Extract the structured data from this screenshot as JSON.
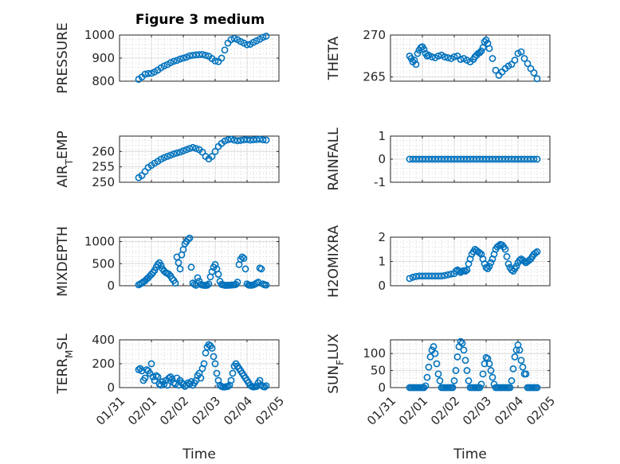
{
  "figure": {
    "title": "Figure 3 medium"
  },
  "chart_data": [
    {
      "type": "scatter",
      "id": "pressure",
      "title": "Figure 3 medium",
      "ylabel": "PRESSURE",
      "xlabel": "",
      "ylim": [
        800,
        1000
      ],
      "yticks": [
        800,
        900,
        1000
      ],
      "yticklabels": [
        "800",
        "900",
        "1000"
      ],
      "xlim": [
        0,
        5
      ],
      "xticks": [
        0,
        1,
        2,
        3,
        4,
        5
      ],
      "xticklabels": [],
      "x": [
        0.6,
        0.7,
        0.8,
        0.9,
        1.0,
        1.1,
        1.2,
        1.3,
        1.4,
        1.5,
        1.6,
        1.7,
        1.8,
        1.9,
        2.0,
        2.1,
        2.2,
        2.3,
        2.4,
        2.5,
        2.6,
        2.7,
        2.8,
        2.9,
        3.0,
        3.1,
        3.2,
        3.3,
        3.4,
        3.5,
        3.6,
        3.7,
        3.8,
        3.9,
        4.0,
        4.1,
        4.2,
        4.3,
        4.4,
        4.5,
        4.6
      ],
      "values": [
        808,
        818,
        830,
        833,
        834,
        840,
        848,
        858,
        866,
        872,
        880,
        886,
        890,
        896,
        900,
        904,
        910,
        912,
        914,
        915,
        916,
        912,
        908,
        898,
        888,
        885,
        900,
        935,
        965,
        980,
        985,
        980,
        972,
        965,
        958,
        960,
        968,
        975,
        982,
        990,
        995
      ]
    },
    {
      "type": "scatter",
      "id": "theta",
      "ylabel": "THETA",
      "xlabel": "",
      "ylim": [
        264.5,
        270
      ],
      "yticks": [
        265,
        270
      ],
      "yticklabels": [
        "265",
        "270"
      ],
      "xlim": [
        0,
        5
      ],
      "xticks": [
        0,
        1,
        2,
        3,
        4,
        5
      ],
      "xticklabels": [],
      "x": [
        0.6,
        0.65,
        0.7,
        0.75,
        0.8,
        0.85,
        0.9,
        0.95,
        1.0,
        1.05,
        1.1,
        1.15,
        1.2,
        1.3,
        1.4,
        1.5,
        1.6,
        1.7,
        1.8,
        1.9,
        2.0,
        2.1,
        2.2,
        2.3,
        2.4,
        2.5,
        2.6,
        2.65,
        2.7,
        2.75,
        2.8,
        2.85,
        2.9,
        2.95,
        3.0,
        3.05,
        3.1,
        3.2,
        3.3,
        3.4,
        3.5,
        3.6,
        3.7,
        3.8,
        3.9,
        4.0,
        4.1,
        4.2,
        4.3,
        4.4,
        4.5,
        4.6
      ],
      "values": [
        267.5,
        267.2,
        266.8,
        267.0,
        266.5,
        267.8,
        268.2,
        268.5,
        268.6,
        268.3,
        267.8,
        267.5,
        267.6,
        267.4,
        267.3,
        267.5,
        267.6,
        267.4,
        267.3,
        267.2,
        267.4,
        267.5,
        267.1,
        267.2,
        267.0,
        266.8,
        267.1,
        267.4,
        267.6,
        267.8,
        267.9,
        268.1,
        268.5,
        269.2,
        269.4,
        269.0,
        268.4,
        267.2,
        265.8,
        265.2,
        265.6,
        266.0,
        266.3,
        266.5,
        267.0,
        267.8,
        268.0,
        267.2,
        266.6,
        266.0,
        265.5,
        264.8
      ]
    },
    {
      "type": "scatter",
      "id": "air-temp",
      "ylabel": "AIR_TEMP",
      "xlabel": "",
      "ylim": [
        250,
        265
      ],
      "yticks": [
        250,
        255,
        260
      ],
      "yticklabels": [
        "250",
        "255",
        "260"
      ],
      "xlim": [
        0,
        5
      ],
      "xticks": [
        0,
        1,
        2,
        3,
        4,
        5
      ],
      "xticklabels": [],
      "x": [
        0.6,
        0.7,
        0.8,
        0.9,
        1.0,
        1.1,
        1.2,
        1.3,
        1.4,
        1.5,
        1.6,
        1.7,
        1.8,
        1.9,
        2.0,
        2.1,
        2.2,
        2.3,
        2.4,
        2.5,
        2.6,
        2.7,
        2.8,
        2.9,
        3.0,
        3.1,
        3.2,
        3.3,
        3.4,
        3.5,
        3.6,
        3.7,
        3.8,
        3.9,
        4.0,
        4.1,
        4.2,
        4.3,
        4.4,
        4.5,
        4.6
      ],
      "values": [
        251.5,
        252.2,
        253.5,
        254.8,
        255.5,
        256.2,
        256.8,
        257.5,
        258.0,
        258.4,
        258.8,
        259.2,
        259.5,
        259.8,
        260.2,
        260.6,
        261.0,
        261.3,
        261.0,
        260.6,
        259.8,
        258.4,
        257.6,
        258.4,
        260.0,
        261.6,
        262.6,
        263.4,
        263.8,
        264.0,
        263.7,
        263.5,
        263.6,
        263.8,
        263.9,
        263.7,
        263.8,
        263.9,
        264.0,
        263.8,
        263.7
      ]
    },
    {
      "type": "scatter",
      "id": "rainfall",
      "ylabel": "RAINFALL",
      "xlabel": "",
      "ylim": [
        -1,
        1
      ],
      "yticks": [
        -1,
        0,
        1
      ],
      "yticklabels": [
        "-1",
        "0",
        "1"
      ],
      "xlim": [
        0,
        5
      ],
      "xticks": [
        0,
        1,
        2,
        3,
        4,
        5
      ],
      "xticklabels": [],
      "x": [
        0.6,
        0.7,
        0.8,
        0.9,
        1.0,
        1.1,
        1.2,
        1.3,
        1.4,
        1.5,
        1.6,
        1.7,
        1.8,
        1.9,
        2.0,
        2.1,
        2.2,
        2.3,
        2.4,
        2.5,
        2.6,
        2.7,
        2.8,
        2.9,
        3.0,
        3.1,
        3.2,
        3.3,
        3.4,
        3.5,
        3.6,
        3.7,
        3.8,
        3.9,
        4.0,
        4.1,
        4.2,
        4.3,
        4.4,
        4.5,
        4.6
      ],
      "values": [
        0,
        0,
        0,
        0,
        0,
        0,
        0,
        0,
        0,
        0,
        0,
        0,
        0,
        0,
        0,
        0,
        0,
        0,
        0,
        0,
        0,
        0,
        0,
        0,
        0,
        0,
        0,
        0,
        0,
        0,
        0,
        0,
        0,
        0,
        0,
        0,
        0,
        0,
        0,
        0,
        0
      ]
    },
    {
      "type": "scatter",
      "id": "mixdepth",
      "ylabel": "MIXDEPTH",
      "xlabel": "",
      "ylim": [
        0,
        1100
      ],
      "yticks": [
        0,
        500,
        1000
      ],
      "yticklabels": [
        "0",
        "500",
        "1000"
      ],
      "xlim": [
        0,
        5
      ],
      "xticks": [
        0,
        1,
        2,
        3,
        4,
        5
      ],
      "xticklabels": [],
      "x": [
        0.6,
        0.65,
        0.7,
        0.75,
        0.8,
        0.85,
        0.9,
        0.95,
        1.0,
        1.05,
        1.1,
        1.15,
        1.2,
        1.25,
        1.3,
        1.35,
        1.4,
        1.45,
        1.5,
        1.55,
        1.6,
        1.65,
        1.7,
        1.75,
        1.8,
        1.85,
        1.9,
        1.95,
        2.0,
        2.05,
        2.1,
        2.15,
        2.2,
        2.25,
        2.3,
        2.35,
        2.4,
        2.45,
        2.5,
        2.55,
        2.6,
        2.65,
        2.7,
        2.75,
        2.8,
        2.85,
        2.9,
        2.95,
        3.0,
        3.05,
        3.1,
        3.15,
        3.2,
        3.25,
        3.3,
        3.35,
        3.4,
        3.45,
        3.5,
        3.55,
        3.6,
        3.65,
        3.7,
        3.75,
        3.8,
        3.85,
        3.9,
        3.95,
        4.0,
        4.05,
        4.1,
        4.15,
        4.2,
        4.25,
        4.3,
        4.35,
        4.4,
        4.45,
        4.5,
        4.55,
        4.6
      ],
      "values": [
        20,
        40,
        60,
        90,
        110,
        150,
        180,
        220,
        260,
        300,
        350,
        420,
        480,
        520,
        460,
        380,
        330,
        300,
        280,
        260,
        220,
        160,
        120,
        60,
        650,
        520,
        380,
        700,
        820,
        950,
        1000,
        1050,
        1080,
        420,
        60,
        30,
        10,
        180,
        100,
        30,
        15,
        10,
        8,
        12,
        40,
        200,
        320,
        420,
        480,
        380,
        260,
        100,
        30,
        20,
        10,
        8,
        10,
        12,
        15,
        18,
        20,
        30,
        80,
        480,
        600,
        650,
        620,
        380,
        40,
        15,
        10,
        12,
        20,
        35,
        60,
        80,
        400,
        380,
        40,
        20,
        15
      ]
    },
    {
      "type": "scatter",
      "id": "h2omixra",
      "ylabel": "H2OMIXRA",
      "xlabel": "",
      "ylim": [
        0,
        2
      ],
      "yticks": [
        0,
        1,
        2
      ],
      "yticklabels": [
        "0",
        "1",
        "2"
      ],
      "xlim": [
        0,
        5
      ],
      "xticks": [
        0,
        1,
        2,
        3,
        4,
        5
      ],
      "xticklabels": [],
      "x": [
        0.6,
        0.7,
        0.8,
        0.9,
        1.0,
        1.1,
        1.2,
        1.3,
        1.4,
        1.5,
        1.6,
        1.7,
        1.8,
        1.9,
        2.0,
        2.05,
        2.1,
        2.15,
        2.2,
        2.25,
        2.3,
        2.35,
        2.4,
        2.45,
        2.5,
        2.55,
        2.6,
        2.65,
        2.7,
        2.75,
        2.8,
        2.85,
        2.9,
        2.95,
        3.0,
        3.05,
        3.1,
        3.15,
        3.2,
        3.25,
        3.3,
        3.35,
        3.4,
        3.45,
        3.5,
        3.55,
        3.6,
        3.65,
        3.7,
        3.75,
        3.8,
        3.85,
        3.9,
        3.95,
        4.0,
        4.05,
        4.1,
        4.15,
        4.2,
        4.25,
        4.3,
        4.35,
        4.4,
        4.45,
        4.5,
        4.55,
        4.6
      ],
      "values": [
        0.3,
        0.35,
        0.38,
        0.4,
        0.4,
        0.4,
        0.4,
        0.4,
        0.4,
        0.4,
        0.4,
        0.42,
        0.45,
        0.48,
        0.5,
        0.6,
        0.65,
        0.6,
        0.55,
        0.6,
        0.62,
        0.6,
        0.65,
        0.9,
        1.1,
        1.3,
        1.4,
        1.5,
        1.45,
        1.4,
        1.35,
        1.3,
        1.1,
        0.9,
        0.75,
        0.7,
        0.8,
        0.95,
        1.1,
        1.3,
        1.5,
        1.6,
        1.65,
        1.7,
        1.68,
        1.6,
        1.5,
        1.2,
        0.9,
        0.75,
        0.65,
        0.6,
        0.7,
        0.8,
        0.95,
        1.05,
        1.1,
        1.05,
        1.0,
        0.95,
        1.0,
        1.05,
        1.1,
        1.2,
        1.3,
        1.35,
        1.4
      ]
    },
    {
      "type": "scatter",
      "id": "terr-msl",
      "ylabel": "TERR_MSL",
      "xlabel": "Time",
      "ylim": [
        0,
        400
      ],
      "yticks": [
        0,
        200,
        400
      ],
      "yticklabels": [
        "0",
        "200",
        "400"
      ],
      "xlim": [
        0,
        5
      ],
      "xticks": [
        0,
        1,
        2,
        3,
        4,
        5
      ],
      "xticklabels": [
        "01/31",
        "02/01",
        "02/02",
        "02/03",
        "02/04",
        "02/05"
      ],
      "x": [
        0.6,
        0.65,
        0.7,
        0.75,
        0.8,
        0.85,
        0.9,
        0.95,
        1.0,
        1.05,
        1.1,
        1.15,
        1.2,
        1.25,
        1.3,
        1.35,
        1.4,
        1.45,
        1.5,
        1.55,
        1.6,
        1.65,
        1.7,
        1.75,
        1.8,
        1.85,
        1.9,
        1.95,
        2.0,
        2.05,
        2.1,
        2.15,
        2.2,
        2.25,
        2.3,
        2.35,
        2.4,
        2.45,
        2.5,
        2.55,
        2.6,
        2.65,
        2.7,
        2.75,
        2.8,
        2.85,
        2.9,
        2.95,
        3.0,
        3.05,
        3.1,
        3.15,
        3.2,
        3.25,
        3.3,
        3.35,
        3.4,
        3.45,
        3.5,
        3.55,
        3.6,
        3.65,
        3.7,
        3.75,
        3.8,
        3.85,
        3.9,
        3.95,
        4.0,
        4.05,
        4.1,
        4.15,
        4.2,
        4.25,
        4.3,
        4.35,
        4.4,
        4.45,
        4.5,
        4.55,
        4.6
      ],
      "values": [
        150,
        160,
        140,
        60,
        80,
        150,
        140,
        120,
        200,
        90,
        60,
        100,
        90,
        30,
        20,
        50,
        30,
        60,
        20,
        80,
        90,
        70,
        40,
        30,
        80,
        20,
        60,
        40,
        30,
        10,
        20,
        40,
        30,
        50,
        20,
        40,
        60,
        100,
        120,
        80,
        160,
        200,
        290,
        340,
        360,
        350,
        330,
        260,
        200,
        120,
        60,
        20,
        10,
        5,
        5,
        8,
        10,
        20,
        60,
        120,
        180,
        200,
        180,
        160,
        140,
        120,
        100,
        80,
        60,
        40,
        20,
        10,
        5,
        8,
        10,
        40,
        60,
        20,
        10,
        5,
        15
      ]
    },
    {
      "type": "scatter",
      "id": "sun-flux",
      "ylabel": "SUN_FLUX",
      "xlabel": "Time",
      "ylim": [
        0,
        140
      ],
      "yticks": [
        0,
        50,
        100
      ],
      "yticklabels": [
        "0",
        "50",
        "100"
      ],
      "xlim": [
        0,
        5
      ],
      "xticks": [
        0,
        1,
        2,
        3,
        4,
        5
      ],
      "xticklabels": [
        "01/31",
        "02/01",
        "02/02",
        "02/03",
        "02/04",
        "02/05"
      ],
      "x": [
        0.6,
        0.65,
        0.7,
        0.75,
        0.8,
        0.85,
        0.9,
        0.95,
        1.0,
        1.05,
        1.1,
        1.15,
        1.2,
        1.25,
        1.3,
        1.35,
        1.4,
        1.45,
        1.5,
        1.55,
        1.6,
        1.65,
        1.7,
        1.75,
        1.8,
        1.85,
        1.9,
        1.95,
        2.0,
        2.05,
        2.1,
        2.15,
        2.2,
        2.25,
        2.3,
        2.35,
        2.4,
        2.45,
        2.5,
        2.55,
        2.6,
        2.65,
        2.7,
        2.75,
        2.8,
        2.85,
        2.9,
        2.95,
        3.0,
        3.05,
        3.1,
        3.15,
        3.2,
        3.25,
        3.3,
        3.35,
        3.4,
        3.45,
        3.5,
        3.55,
        3.6,
        3.65,
        3.7,
        3.75,
        3.8,
        3.85,
        3.9,
        3.95,
        4.0,
        4.05,
        4.1,
        4.15,
        4.2,
        4.25,
        4.3,
        4.35,
        4.4,
        4.45,
        4.5,
        4.55,
        4.6
      ],
      "values": [
        0,
        0,
        0,
        0,
        0,
        0,
        0,
        0,
        0,
        0,
        5,
        30,
        60,
        90,
        110,
        120,
        100,
        70,
        40,
        20,
        0,
        0,
        0,
        0,
        0,
        0,
        0,
        0,
        20,
        50,
        90,
        120,
        135,
        130,
        110,
        80,
        50,
        20,
        0,
        0,
        0,
        0,
        0,
        0,
        0,
        10,
        40,
        70,
        88,
        85,
        70,
        50,
        30,
        10,
        0,
        0,
        0,
        0,
        0,
        0,
        0,
        0,
        0,
        0,
        20,
        55,
        90,
        110,
        125,
        110,
        80,
        60,
        40,
        40,
        0,
        0,
        0,
        0,
        0,
        0,
        0
      ]
    }
  ]
}
